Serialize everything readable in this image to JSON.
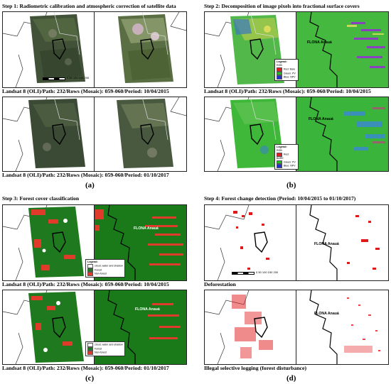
{
  "steps": [
    "Step 1: Radiometric calibration and atmospheric correction of satellite data",
    "Step 2: Decomposition of image pixels into fractional surface covers",
    "Step 3: Forest cover classification",
    "Step 4: Forest change detection (Period: 10/04/2015 to 01/10/2017)"
  ],
  "captions": {
    "a1": "Landsat 8 (OLI)/Path: 232/Rows (Mosaic): 059-060/Period: 10/04/2015",
    "a2": "Landsat 8 (OLI)/Path: 232/Rows (Mosaic): 059-060/Period: 01/10/2017",
    "b1": "Landsat 8 (OLI)/Path: 232/Rows (Mosaic): 059-060/Period: 10/04/2015",
    "c1": "Landsat 8 (OLI)/Path: 232/Rows (Mosaic): 059-060/Period: 10/04/2015",
    "c2": "Landsat 8 (OLI)/Path: 232/Rows (Mosaic): 059-060/Period: 01/10/2017",
    "d1": "Deforestation",
    "d2": "Illegal selective logging (forest disturbance)"
  },
  "panel_labels": [
    "(a)",
    "(b)",
    "(c)",
    "(d)"
  ],
  "flona": "FLONA Anauá",
  "scale": {
    "ticks": "0  50  100  150  200",
    "units": "km"
  },
  "legend_b": {
    "title": "Legend:",
    "sub": "RGB",
    "r1": "Red:   Bare",
    "g1": "Green: PV",
    "b1": "Blue:  NPV",
    "r2": "Red:   BARE",
    "g2": "Green: PV",
    "b2": "Blue:  NPV"
  },
  "legend_c": {
    "title": "Legend:",
    "cloud": "cloud, water and shadow",
    "forest": "Forest",
    "nonforest": "Non-forest"
  },
  "colors": {
    "forest": "#1f7a1f",
    "nonforest": "#e03a2a",
    "change": "#e01818",
    "sat_dark": "#3e4a32",
    "fraction_green": "#39c23a"
  }
}
